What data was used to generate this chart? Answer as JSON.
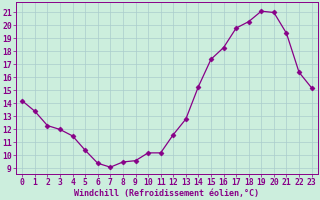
{
  "x": [
    0,
    1,
    2,
    3,
    4,
    5,
    6,
    7,
    8,
    9,
    10,
    11,
    12,
    13,
    14,
    15,
    16,
    17,
    18,
    19,
    20,
    21,
    22,
    23
  ],
  "y": [
    14.2,
    13.4,
    12.3,
    12.0,
    11.5,
    10.4,
    9.4,
    9.1,
    9.5,
    9.6,
    10.2,
    10.2,
    11.6,
    12.8,
    15.3,
    17.4,
    18.3,
    19.8,
    20.3,
    21.1,
    21.0,
    19.4,
    16.4,
    15.2
  ],
  "line_color": "#880088",
  "marker": "D",
  "marker_size": 2.5,
  "background_color": "#cceedd",
  "grid_color": "#aacccc",
  "tick_color": "#880088",
  "xlabel": "Windchill (Refroidissement éolien,°C)",
  "ylabel_ticks": [
    9,
    10,
    11,
    12,
    13,
    14,
    15,
    16,
    17,
    18,
    19,
    20,
    21
  ],
  "xlim": [
    -0.5,
    23.5
  ],
  "ylim": [
    8.6,
    21.8
  ],
  "xlabel_fontsize": 6.0,
  "tick_fontsize": 5.8,
  "axis_label_color": "#880088",
  "linewidth": 0.9
}
